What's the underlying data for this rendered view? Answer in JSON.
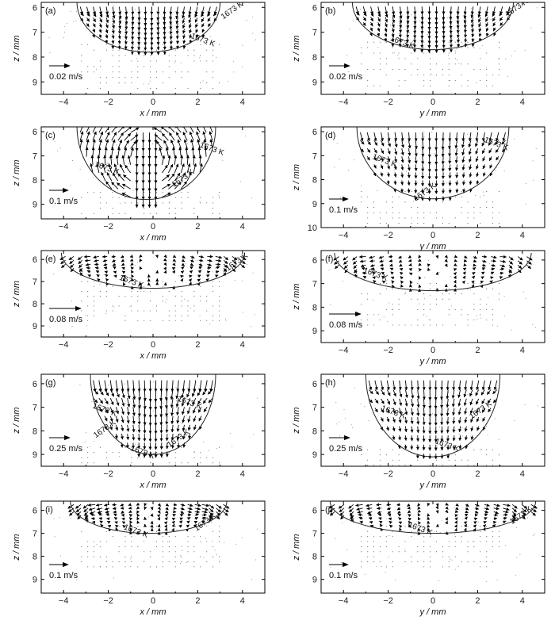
{
  "figure": {
    "x_axis_units": "/ mm",
    "z_axis_label": "z / mm"
  },
  "chart_data": [
    {
      "id": "a",
      "type": "quiver",
      "tag": "(a)",
      "xlabel": "x / mm",
      "ylabel": "z / mm",
      "xlim": [
        -5,
        5
      ],
      "ylim": [
        9.5,
        5.8
      ],
      "xticks": [
        -4,
        -2,
        0,
        2,
        4
      ],
      "yticks": [
        6,
        7,
        8,
        9
      ],
      "pool": {
        "center": -0.2,
        "half_width": 3.2,
        "top": 5.8,
        "bottom": 7.8
      },
      "isotherm_label": "1673 K",
      "isotherm_label_positions": [
        [
          2.2,
          7.4
        ],
        [
          3.6,
          6.2
        ]
      ],
      "scale_label": "0.02 m/s",
      "intensity": 0.9,
      "pattern": "down",
      "dots": true
    },
    {
      "id": "b",
      "type": "quiver",
      "tag": "(b)",
      "xlabel": "y / mm",
      "ylabel": "z / mm",
      "xlim": [
        -5,
        5
      ],
      "ylim": [
        9.5,
        5.8
      ],
      "xticks": [
        -4,
        -2,
        0,
        2,
        4
      ],
      "yticks": [
        6,
        7,
        8,
        9
      ],
      "pool": {
        "center": 0,
        "half_width": 3.6,
        "top": 5.8,
        "bottom": 7.7
      },
      "isotherm_label": "1673 K",
      "isotherm_label_positions": [
        [
          -1.4,
          7.5
        ],
        [
          3.8,
          6.1
        ]
      ],
      "scale_label": "0.02 m/s",
      "intensity": 0.9,
      "pattern": "down",
      "dots": true
    },
    {
      "id": "c",
      "type": "quiver",
      "tag": "(c)",
      "xlabel": "x / mm",
      "ylabel": "z / mm",
      "xlim": [
        -5,
        5
      ],
      "ylim": [
        9.6,
        5.8
      ],
      "xticks": [
        -4,
        -2,
        0,
        2,
        4
      ],
      "yticks": [
        6,
        7,
        8,
        9
      ],
      "pool": {
        "center": -0.3,
        "half_width": 3.1,
        "top": 5.8,
        "bottom": 8.8
      },
      "isotherm_label": "1673 K",
      "isotherm_label_positions": [
        [
          -2.1,
          7.6
        ],
        [
          1.4,
          8.0
        ],
        [
          2.6,
          6.8
        ]
      ],
      "scale_label": "0.1 m/s",
      "intensity": 1.1,
      "pattern": "vortex",
      "dots": true
    },
    {
      "id": "d",
      "type": "quiver",
      "tag": "(d)",
      "xlabel": "y / mm",
      "ylabel": "z / mm",
      "xlim": [
        -5,
        5
      ],
      "ylim": [
        10,
        5.8
      ],
      "xticks": [
        -4,
        -2,
        0,
        2,
        4
      ],
      "yticks": [
        6,
        7,
        8,
        9,
        10
      ],
      "pool": {
        "center": 0,
        "half_width": 3.4,
        "top": 5.8,
        "bottom": 8.8
      },
      "isotherm_label": "1673 K",
      "isotherm_label_positions": [
        [
          -2.2,
          7.3
        ],
        [
          -0.3,
          8.6
        ],
        [
          2.8,
          6.6
        ]
      ],
      "scale_label": "0.1 m/s",
      "intensity": 1.0,
      "pattern": "down",
      "dots": true
    },
    {
      "id": "e",
      "type": "quiver",
      "tag": "(e)",
      "xlabel": "x / mm",
      "ylabel": "z / mm",
      "xlim": [
        -5,
        5
      ],
      "ylim": [
        9.5,
        5.6
      ],
      "xticks": [
        -4,
        -2,
        0,
        2,
        4
      ],
      "yticks": [
        6,
        7,
        8,
        9
      ],
      "pool": {
        "center": 0,
        "half_width": 4.1,
        "top": 5.7,
        "bottom": 7.3
      },
      "isotherm_label": "1673 K",
      "isotherm_label_positions": [
        [
          -1.0,
          7.1
        ],
        [
          3.8,
          6.2
        ]
      ],
      "scale_label": "0.08 m/s",
      "intensity": 0.9,
      "pattern": "outward",
      "dots": true
    },
    {
      "id": "f",
      "type": "quiver",
      "tag": "(f)",
      "xlabel": "y / mm",
      "ylabel": "z / mm",
      "xlim": [
        -5,
        5
      ],
      "ylim": [
        9.5,
        5.6
      ],
      "xticks": [
        -4,
        -2,
        0,
        2,
        4
      ],
      "yticks": [
        6,
        7,
        8,
        9
      ],
      "pool": {
        "center": 0,
        "half_width": 4.4,
        "top": 5.7,
        "bottom": 7.3
      },
      "isotherm_label": "1673 K",
      "isotherm_label_positions": [
        [
          -2.6,
          6.7
        ]
      ],
      "scale_label": "0.08 m/s",
      "intensity": 0.9,
      "pattern": "outward",
      "dots": true
    },
    {
      "id": "g",
      "type": "quiver",
      "tag": "(g)",
      "xlabel": "x / mm",
      "ylabel": "z / mm",
      "xlim": [
        -5,
        5
      ],
      "ylim": [
        9.5,
        5.6
      ],
      "xticks": [
        -4,
        -2,
        0,
        2,
        4
      ],
      "yticks": [
        6,
        7,
        8,
        9
      ],
      "pool": {
        "center": 0,
        "half_width": 2.8,
        "top": 5.6,
        "bottom": 9.0
      },
      "isotherm_label": "1673 K",
      "isotherm_label_positions": [
        [
          -2.2,
          7.2
        ],
        [
          -2.1,
          8.0
        ],
        [
          1.6,
          6.9
        ],
        [
          1.2,
          8.4
        ],
        [
          -0.5,
          9.0
        ]
      ],
      "scale_label": "0.25 m/s",
      "intensity": 1.3,
      "pattern": "down",
      "dots": true
    },
    {
      "id": "h",
      "type": "quiver",
      "tag": "(h)",
      "xlabel": "y / mm",
      "ylabel": "z / mm",
      "xlim": [
        -5,
        5
      ],
      "ylim": [
        9.5,
        5.6
      ],
      "xticks": [
        -4,
        -2,
        0,
        2,
        4
      ],
      "yticks": [
        6,
        7,
        8,
        9
      ],
      "pool": {
        "center": 0,
        "half_width": 3.0,
        "top": 5.6,
        "bottom": 9.1
      },
      "isotherm_label": "1673 K",
      "isotherm_label_positions": [
        [
          -1.8,
          7.3
        ],
        [
          2.2,
          7.2
        ],
        [
          0.6,
          8.7
        ]
      ],
      "scale_label": "0.25 m/s",
      "intensity": 1.1,
      "pattern": "down",
      "dots": true
    },
    {
      "id": "i",
      "type": "quiver",
      "tag": "(i)",
      "xlabel": "x / mm",
      "ylabel": "z / mm",
      "xlim": [
        -5,
        5
      ],
      "ylim": [
        9.6,
        5.6
      ],
      "xticks": [
        -4,
        -2,
        0,
        2,
        4
      ],
      "yticks": [
        6,
        7,
        8,
        9
      ],
      "pool": {
        "center": -0.2,
        "half_width": 3.5,
        "top": 5.6,
        "bottom": 7.0
      },
      "isotherm_label": "1673 K",
      "isotherm_label_positions": [
        [
          -0.8,
          7.0
        ],
        [
          2.4,
          6.6
        ]
      ],
      "scale_label": "0.1 m/s",
      "intensity": 1.0,
      "pattern": "outward",
      "dots": true
    },
    {
      "id": "j",
      "type": "quiver",
      "tag": "(j)",
      "xlabel": "y / mm",
      "ylabel": "z / mm",
      "xlim": [
        -5,
        5
      ],
      "ylim": [
        9.6,
        5.6
      ],
      "xticks": [
        -4,
        -2,
        0,
        2,
        4
      ],
      "yticks": [
        6,
        7,
        8,
        9
      ],
      "pool": {
        "center": 0,
        "half_width": 4.6,
        "top": 5.6,
        "bottom": 7.0
      },
      "isotherm_label": "1673 K",
      "isotherm_label_positions": [
        [
          -0.6,
          6.9
        ],
        [
          4.0,
          6.3
        ]
      ],
      "scale_label": "0.1 m/s",
      "intensity": 1.0,
      "pattern": "outward",
      "dots": true
    }
  ]
}
